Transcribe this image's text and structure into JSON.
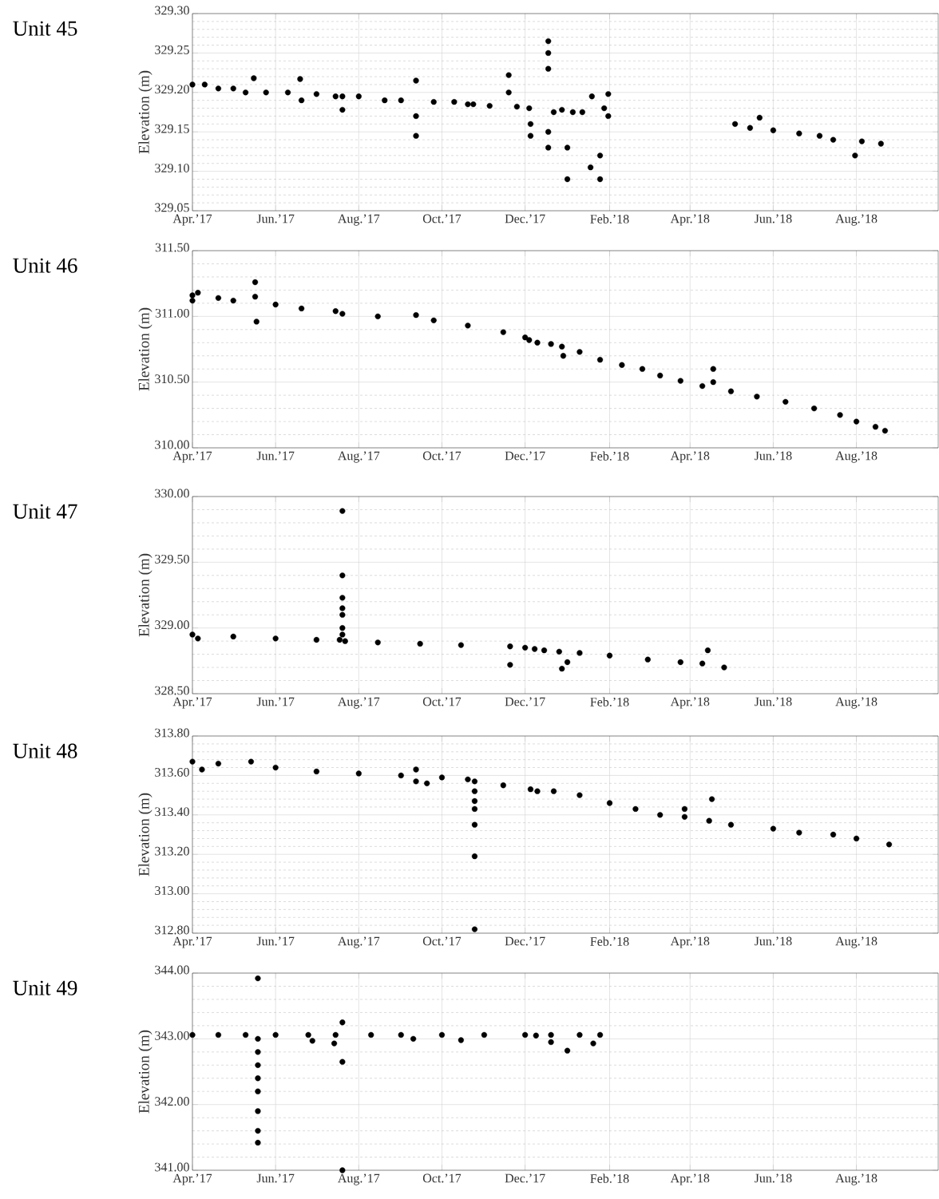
{
  "chart_data": [
    {
      "type": "scatter",
      "title": "Unit 45",
      "ylabel": "Elevation (m)",
      "color": "#000000",
      "marker": "circle",
      "grid": true,
      "x": [
        "2017-04-01",
        "2017-04-10",
        "2017-04-20",
        "2017-05-01",
        "2017-05-10",
        "2017-05-16",
        "2017-05-25",
        "2017-06-10",
        "2017-06-19",
        "2017-06-20",
        "2017-07-01",
        "2017-07-15",
        "2017-07-20",
        "2017-07-20",
        "2017-08-01",
        "2017-08-20",
        "2017-09-01",
        "2017-09-12",
        "2017-09-12",
        "2017-09-12",
        "2017-09-25",
        "2017-10-10",
        "2017-10-20",
        "2017-10-24",
        "2017-11-05",
        "2017-11-19",
        "2017-11-19",
        "2017-11-25",
        "2017-12-04",
        "2017-12-05",
        "2017-12-05",
        "2017-12-18",
        "2017-12-18",
        "2017-12-18",
        "2017-12-18",
        "2017-12-18",
        "2017-12-22",
        "2017-12-28",
        "2018-01-01",
        "2018-01-01",
        "2018-01-05",
        "2018-01-12",
        "2018-01-18",
        "2018-01-19",
        "2018-01-25",
        "2018-01-25",
        "2018-01-28",
        "2018-01-31",
        "2018-01-31",
        "2018-05-04",
        "2018-05-15",
        "2018-05-22",
        "2018-06-01",
        "2018-06-20",
        "2018-07-05",
        "2018-07-15",
        "2018-07-31",
        "2018-08-05",
        "2018-08-19"
      ],
      "values": [
        329.21,
        329.21,
        329.205,
        329.205,
        329.2,
        329.218,
        329.2,
        329.2,
        329.217,
        329.19,
        329.198,
        329.195,
        329.195,
        329.178,
        329.195,
        329.19,
        329.19,
        329.215,
        329.17,
        329.145,
        329.188,
        329.188,
        329.185,
        329.185,
        329.183,
        329.222,
        329.2,
        329.182,
        329.18,
        329.16,
        329.145,
        329.265,
        329.25,
        329.23,
        329.15,
        329.13,
        329.175,
        329.178,
        329.13,
        329.09,
        329.175,
        329.175,
        329.105,
        329.195,
        329.12,
        329.09,
        329.18,
        329.17,
        329.198,
        329.16,
        329.155,
        329.168,
        329.152,
        329.148,
        329.145,
        329.14,
        329.12,
        329.138,
        329.135
      ],
      "xlim": [
        "2017-04-01",
        "2018-09-30"
      ],
      "ylim": [
        329.05,
        329.3
      ],
      "xticks": [
        {
          "value": "2017-04-01",
          "label": "Apr.’17"
        },
        {
          "value": "2017-06-01",
          "label": "Jun.’17"
        },
        {
          "value": "2017-08-01",
          "label": "Aug.’17"
        },
        {
          "value": "2017-10-01",
          "label": "Oct.’17"
        },
        {
          "value": "2017-12-01",
          "label": "Dec.’17"
        },
        {
          "value": "2018-02-01",
          "label": "Feb.’18"
        },
        {
          "value": "2018-04-01",
          "label": "Apr.’18"
        },
        {
          "value": "2018-06-01",
          "label": "Jun.’18"
        },
        {
          "value": "2018-08-01",
          "label": "Aug.’18"
        }
      ],
      "yticks": [
        {
          "value": 329.05,
          "label": "329.05"
        },
        {
          "value": 329.1,
          "label": "329.10"
        },
        {
          "value": 329.15,
          "label": "329.15"
        },
        {
          "value": 329.2,
          "label": "329.20"
        },
        {
          "value": 329.25,
          "label": "329.25"
        },
        {
          "value": 329.3,
          "label": "329.30"
        }
      ]
    },
    {
      "type": "scatter",
      "title": "Unit 46",
      "ylabel": "Elevation (m)",
      "color": "#000000",
      "marker": "circle",
      "grid": true,
      "x": [
        "2017-04-01",
        "2017-04-01",
        "2017-04-05",
        "2017-04-20",
        "2017-05-01",
        "2017-05-17",
        "2017-05-17",
        "2017-05-18",
        "2017-06-01",
        "2017-06-20",
        "2017-07-15",
        "2017-07-20",
        "2017-08-15",
        "2017-09-12",
        "2017-09-25",
        "2017-10-20",
        "2017-11-15",
        "2017-12-01",
        "2017-12-04",
        "2017-12-10",
        "2017-12-20",
        "2017-12-28",
        "2017-12-29",
        "2018-01-10",
        "2018-01-25",
        "2018-02-10",
        "2018-02-25",
        "2018-03-10",
        "2018-03-25",
        "2018-04-10",
        "2018-04-18",
        "2018-04-18",
        "2018-05-01",
        "2018-05-20",
        "2018-06-10",
        "2018-07-01",
        "2018-07-20",
        "2018-08-01",
        "2018-08-15",
        "2018-08-22"
      ],
      "values": [
        311.16,
        311.12,
        311.18,
        311.14,
        311.12,
        311.26,
        311.15,
        310.96,
        311.09,
        311.06,
        311.04,
        311.02,
        311.0,
        311.01,
        310.97,
        310.93,
        310.88,
        310.84,
        310.82,
        310.8,
        310.79,
        310.77,
        310.7,
        310.73,
        310.67,
        310.63,
        310.6,
        310.55,
        310.51,
        310.47,
        310.6,
        310.5,
        310.43,
        310.39,
        310.35,
        310.3,
        310.25,
        310.2,
        310.16,
        310.13
      ],
      "xlim": [
        "2017-04-01",
        "2018-09-30"
      ],
      "ylim": [
        310.0,
        311.5
      ],
      "xticks": [
        {
          "value": "2017-04-01",
          "label": "Apr.’17"
        },
        {
          "value": "2017-06-01",
          "label": "Jun.’17"
        },
        {
          "value": "2017-08-01",
          "label": "Aug.’17"
        },
        {
          "value": "2017-10-01",
          "label": "Oct.’17"
        },
        {
          "value": "2017-12-01",
          "label": "Dec.’17"
        },
        {
          "value": "2018-02-01",
          "label": "Feb.’18"
        },
        {
          "value": "2018-04-01",
          "label": "Apr.’18"
        },
        {
          "value": "2018-06-01",
          "label": "Jun.’18"
        },
        {
          "value": "2018-08-01",
          "label": "Aug.’18"
        }
      ],
      "yticks": [
        {
          "value": 310.0,
          "label": "310.00"
        },
        {
          "value": 310.5,
          "label": "310.50"
        },
        {
          "value": 311.0,
          "label": "311.00"
        },
        {
          "value": 311.5,
          "label": "311.50"
        }
      ]
    },
    {
      "type": "scatter",
      "title": "Unit 47",
      "ylabel": "Elevation (m)",
      "color": "#000000",
      "marker": "circle",
      "grid": true,
      "x": [
        "2017-04-01",
        "2017-04-05",
        "2017-05-01",
        "2017-06-01",
        "2017-07-01",
        "2017-07-18",
        "2017-07-20",
        "2017-07-20",
        "2017-07-20",
        "2017-07-20",
        "2017-07-20",
        "2017-07-20",
        "2017-07-20",
        "2017-07-22",
        "2017-08-15",
        "2017-09-15",
        "2017-10-15",
        "2017-11-20",
        "2017-11-20",
        "2017-12-01",
        "2017-12-08",
        "2017-12-15",
        "2017-12-26",
        "2017-12-28",
        "2018-01-01",
        "2018-01-10",
        "2018-02-01",
        "2018-03-01",
        "2018-03-25",
        "2018-04-10",
        "2018-04-14",
        "2018-04-26"
      ],
      "values": [
        328.95,
        328.92,
        328.935,
        328.92,
        328.91,
        328.91,
        329.89,
        329.4,
        329.23,
        329.15,
        329.1,
        329.0,
        328.95,
        328.9,
        328.89,
        328.88,
        328.87,
        328.86,
        328.72,
        328.85,
        328.84,
        328.83,
        328.82,
        328.69,
        328.74,
        328.81,
        328.79,
        328.76,
        328.74,
        328.73,
        328.83,
        328.7
      ],
      "xlim": [
        "2017-04-01",
        "2018-09-30"
      ],
      "ylim": [
        328.5,
        330.0
      ],
      "xticks": [
        {
          "value": "2017-04-01",
          "label": "Apr.’17"
        },
        {
          "value": "2017-06-01",
          "label": "Jun.’17"
        },
        {
          "value": "2017-08-01",
          "label": "Aug.’17"
        },
        {
          "value": "2017-10-01",
          "label": "Oct.’17"
        },
        {
          "value": "2017-12-01",
          "label": "Dec.’17"
        },
        {
          "value": "2018-02-01",
          "label": "Feb.’18"
        },
        {
          "value": "2018-04-01",
          "label": "Apr.’18"
        },
        {
          "value": "2018-06-01",
          "label": "Jun.’18"
        },
        {
          "value": "2018-08-01",
          "label": "Aug.’18"
        }
      ],
      "yticks": [
        {
          "value": 328.5,
          "label": "328.50"
        },
        {
          "value": 329.0,
          "label": "329.00"
        },
        {
          "value": 329.5,
          "label": "329.50"
        },
        {
          "value": 330.0,
          "label": "330.00"
        }
      ]
    },
    {
      "type": "scatter",
      "title": "Unit 48",
      "ylabel": "Elevation (m)",
      "color": "#000000",
      "marker": "circle",
      "grid": true,
      "x": [
        "2017-04-01",
        "2017-04-08",
        "2017-04-20",
        "2017-05-14",
        "2017-06-01",
        "2017-07-01",
        "2017-08-01",
        "2017-09-01",
        "2017-09-12",
        "2017-09-12",
        "2017-09-20",
        "2017-10-01",
        "2017-10-20",
        "2017-10-25",
        "2017-10-25",
        "2017-10-25",
        "2017-10-25",
        "2017-10-25",
        "2017-10-25",
        "2017-10-25",
        "2017-11-15",
        "2017-12-05",
        "2017-12-10",
        "2017-12-22",
        "2018-01-10",
        "2018-02-01",
        "2018-02-20",
        "2018-03-10",
        "2018-03-28",
        "2018-03-28",
        "2018-04-15",
        "2018-04-17",
        "2018-05-01",
        "2018-06-01",
        "2018-06-20",
        "2018-07-15",
        "2018-08-01",
        "2018-08-25"
      ],
      "values": [
        313.67,
        313.63,
        313.66,
        313.67,
        313.64,
        313.62,
        313.61,
        313.6,
        313.63,
        313.57,
        313.56,
        313.59,
        313.58,
        313.57,
        313.52,
        313.47,
        313.43,
        313.35,
        313.19,
        312.82,
        313.55,
        313.53,
        313.52,
        313.52,
        313.5,
        313.46,
        313.43,
        313.4,
        313.43,
        313.39,
        313.37,
        313.48,
        313.35,
        313.33,
        313.31,
        313.3,
        313.28,
        313.25
      ],
      "xlim": [
        "2017-04-01",
        "2018-09-30"
      ],
      "ylim": [
        312.8,
        313.8
      ],
      "xticks": [
        {
          "value": "2017-04-01",
          "label": "Apr.’17"
        },
        {
          "value": "2017-06-01",
          "label": "Jun.’17"
        },
        {
          "value": "2017-08-01",
          "label": "Aug.’17"
        },
        {
          "value": "2017-10-01",
          "label": "Oct.’17"
        },
        {
          "value": "2017-12-01",
          "label": "Dec.’17"
        },
        {
          "value": "2018-02-01",
          "label": "Feb.’18"
        },
        {
          "value": "2018-04-01",
          "label": "Apr.’18"
        },
        {
          "value": "2018-06-01",
          "label": "Jun.’18"
        },
        {
          "value": "2018-08-01",
          "label": "Aug.’18"
        }
      ],
      "yticks": [
        {
          "value": 312.8,
          "label": "312.80"
        },
        {
          "value": 313.0,
          "label": "313.00"
        },
        {
          "value": 313.2,
          "label": "313.20"
        },
        {
          "value": 313.4,
          "label": "313.40"
        },
        {
          "value": 313.6,
          "label": "313.60"
        },
        {
          "value": 313.8,
          "label": "313.80"
        }
      ]
    },
    {
      "type": "scatter",
      "title": "Unit 49",
      "ylabel": "Elevation (m)",
      "color": "#000000",
      "marker": "circle",
      "grid": true,
      "x": [
        "2017-04-01",
        "2017-04-20",
        "2017-05-10",
        "2017-05-19",
        "2017-05-19",
        "2017-05-19",
        "2017-05-19",
        "2017-05-19",
        "2017-05-19",
        "2017-05-19",
        "2017-05-19",
        "2017-05-19",
        "2017-06-01",
        "2017-06-25",
        "2017-06-28",
        "2017-07-14",
        "2017-07-15",
        "2017-07-20",
        "2017-07-20",
        "2017-07-20",
        "2017-08-10",
        "2017-09-01",
        "2017-09-10",
        "2017-10-01",
        "2017-10-15",
        "2017-11-01",
        "2017-12-01",
        "2017-12-09",
        "2017-12-20",
        "2017-12-20",
        "2018-01-01",
        "2018-01-10",
        "2018-01-20",
        "2018-01-25"
      ],
      "values": [
        343.06,
        343.06,
        343.06,
        343.92,
        343.0,
        342.8,
        342.6,
        342.4,
        342.2,
        341.9,
        341.6,
        341.42,
        343.06,
        343.06,
        342.97,
        342.93,
        343.06,
        343.25,
        342.65,
        341.0,
        343.06,
        343.06,
        343.0,
        343.06,
        342.98,
        343.06,
        343.06,
        343.05,
        343.06,
        342.95,
        342.82,
        343.06,
        342.93,
        343.06
      ],
      "xlim": [
        "2017-04-01",
        "2018-09-30"
      ],
      "ylim": [
        341.0,
        344.0
      ],
      "xticks": [
        {
          "value": "2017-04-01",
          "label": "Apr.’17"
        },
        {
          "value": "2017-06-01",
          "label": "Jun.’17"
        },
        {
          "value": "2017-08-01",
          "label": "Aug.’17"
        },
        {
          "value": "2017-10-01",
          "label": "Oct.’17"
        },
        {
          "value": "2017-12-01",
          "label": "Dec.’17"
        },
        {
          "value": "2018-02-01",
          "label": "Feb.’18"
        },
        {
          "value": "2018-04-01",
          "label": "Apr.’18"
        },
        {
          "value": "2018-06-01",
          "label": "Jun.’18"
        },
        {
          "value": "2018-08-01",
          "label": "Aug.’18"
        }
      ],
      "yticks": [
        {
          "value": 341.0,
          "label": "341.00"
        },
        {
          "value": 342.0,
          "label": "342.00"
        },
        {
          "value": 343.0,
          "label": "343.00"
        },
        {
          "value": 344.0,
          "label": "344.00"
        }
      ]
    }
  ]
}
